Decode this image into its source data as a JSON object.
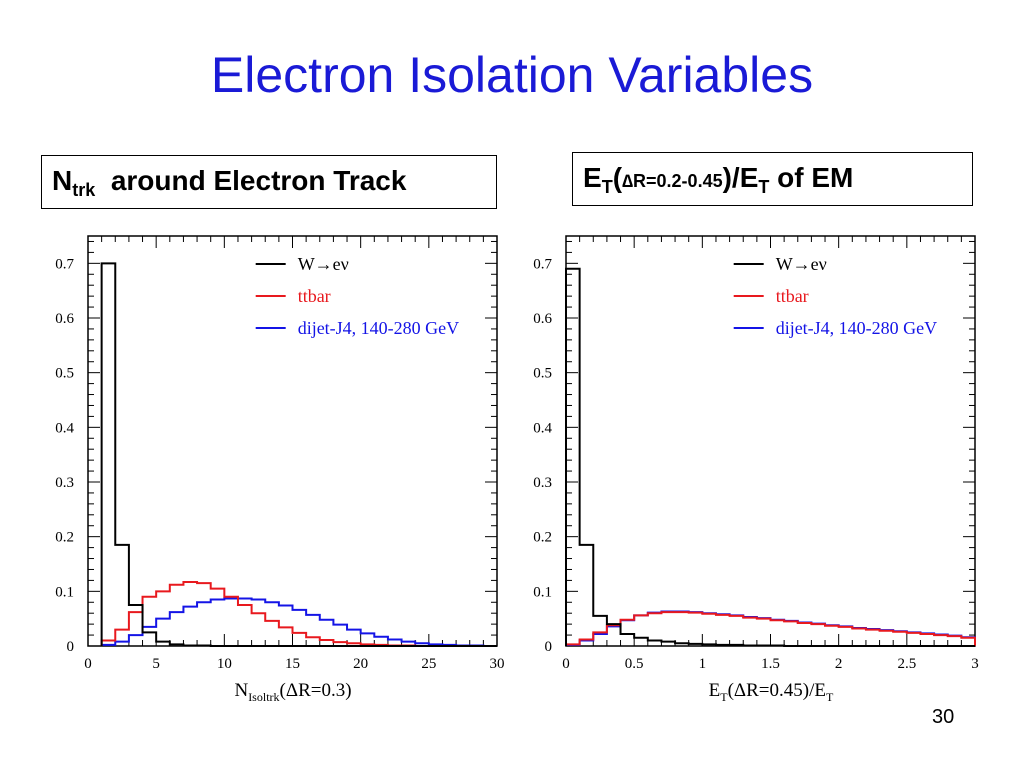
{
  "slide": {
    "title": "Electron Isolation Variables",
    "page_number": "30",
    "left_box": {
      "main": "N",
      "sub": "trk",
      "rest": "around Electron Track"
    },
    "right_box": {
      "p1": "E",
      "s1": "T",
      "p2": "(",
      "p3": "∆R=0.2-0.45",
      "p4": ")/E",
      "s2": "T",
      "p5": " of EM"
    }
  },
  "colors": {
    "title": "#1a1ad6",
    "w": "#000000",
    "ttbar": "#e8191e",
    "dijet": "#1414e6"
  },
  "chart_data": [
    {
      "type": "line",
      "xlabel": {
        "main": "N",
        "sub": "Isoltrk",
        "rest": "(ΔR=0.3)"
      },
      "xlim": [
        0,
        30
      ],
      "ylim": [
        0,
        0.75
      ],
      "xticks": [
        0,
        5,
        10,
        15,
        20,
        25,
        30
      ],
      "yticks": [
        0,
        0.1,
        0.2,
        0.3,
        0.4,
        0.5,
        0.6,
        0.7
      ],
      "bin_edges_start": 1,
      "bin_width": 1,
      "legend_position": "top-right",
      "series": [
        {
          "name": "W→eν",
          "color": "#000000",
          "values": [
            0.7,
            0.185,
            0.075,
            0.025,
            0.008,
            0.003,
            0.001,
            0.001,
            0,
            0,
            0,
            0,
            0,
            0,
            0,
            0,
            0,
            0,
            0,
            0,
            0,
            0,
            0,
            0,
            0,
            0,
            0,
            0,
            0
          ]
        },
        {
          "name": "ttbar",
          "color": "#e8191e",
          "values": [
            0.01,
            0.03,
            0.062,
            0.09,
            0.1,
            0.112,
            0.117,
            0.115,
            0.105,
            0.09,
            0.075,
            0.06,
            0.046,
            0.034,
            0.024,
            0.016,
            0.011,
            0.007,
            0.005,
            0.003,
            0.002,
            0.001,
            0.001,
            0,
            0,
            0,
            0,
            0,
            0
          ]
        },
        {
          "name": "dijet-J4, 140-280 GeV",
          "color": "#1414e6",
          "values": [
            0.002,
            0.008,
            0.02,
            0.035,
            0.05,
            0.062,
            0.072,
            0.08,
            0.085,
            0.087,
            0.087,
            0.085,
            0.08,
            0.074,
            0.066,
            0.057,
            0.048,
            0.039,
            0.03,
            0.023,
            0.017,
            0.012,
            0.008,
            0.005,
            0.003,
            0.002,
            0.001,
            0.001,
            0
          ]
        }
      ]
    },
    {
      "type": "line",
      "xlabel": {
        "main": "E",
        "sub": "T",
        "rest": "(ΔR=0.45)/E",
        "sub2": "T"
      },
      "xlim": [
        0,
        3
      ],
      "ylim": [
        0,
        0.75
      ],
      "xticks": [
        0,
        0.5,
        1,
        1.5,
        2,
        2.5,
        3
      ],
      "yticks": [
        0,
        0.1,
        0.2,
        0.3,
        0.4,
        0.5,
        0.6,
        0.7
      ],
      "bin_edges_start": 0,
      "bin_width": 0.1,
      "legend_position": "top-right",
      "series": [
        {
          "name": "W→eν",
          "color": "#000000",
          "values": [
            0.69,
            0.185,
            0.055,
            0.04,
            0.022,
            0.015,
            0.01,
            0.008,
            0.005,
            0.004,
            0.003,
            0.002,
            0.002,
            0.001,
            0.001,
            0.001,
            0,
            0,
            0,
            0,
            0,
            0,
            0,
            0,
            0,
            0,
            0,
            0,
            0,
            0
          ]
        },
        {
          "name": "ttbar",
          "color": "#e8191e",
          "values": [
            0.003,
            0.012,
            0.025,
            0.038,
            0.048,
            0.056,
            0.06,
            0.062,
            0.062,
            0.061,
            0.059,
            0.057,
            0.055,
            0.052,
            0.05,
            0.047,
            0.045,
            0.042,
            0.04,
            0.037,
            0.035,
            0.032,
            0.03,
            0.028,
            0.026,
            0.024,
            0.022,
            0.02,
            0.018,
            0.015
          ]
        },
        {
          "name": "dijet-J4, 140-280 GeV",
          "color": "#1414e6",
          "values": [
            0.002,
            0.01,
            0.022,
            0.036,
            0.047,
            0.056,
            0.061,
            0.063,
            0.063,
            0.062,
            0.06,
            0.058,
            0.056,
            0.053,
            0.051,
            0.048,
            0.046,
            0.043,
            0.041,
            0.038,
            0.036,
            0.033,
            0.031,
            0.029,
            0.027,
            0.025,
            0.023,
            0.021,
            0.019,
            0.016
          ]
        }
      ]
    }
  ]
}
